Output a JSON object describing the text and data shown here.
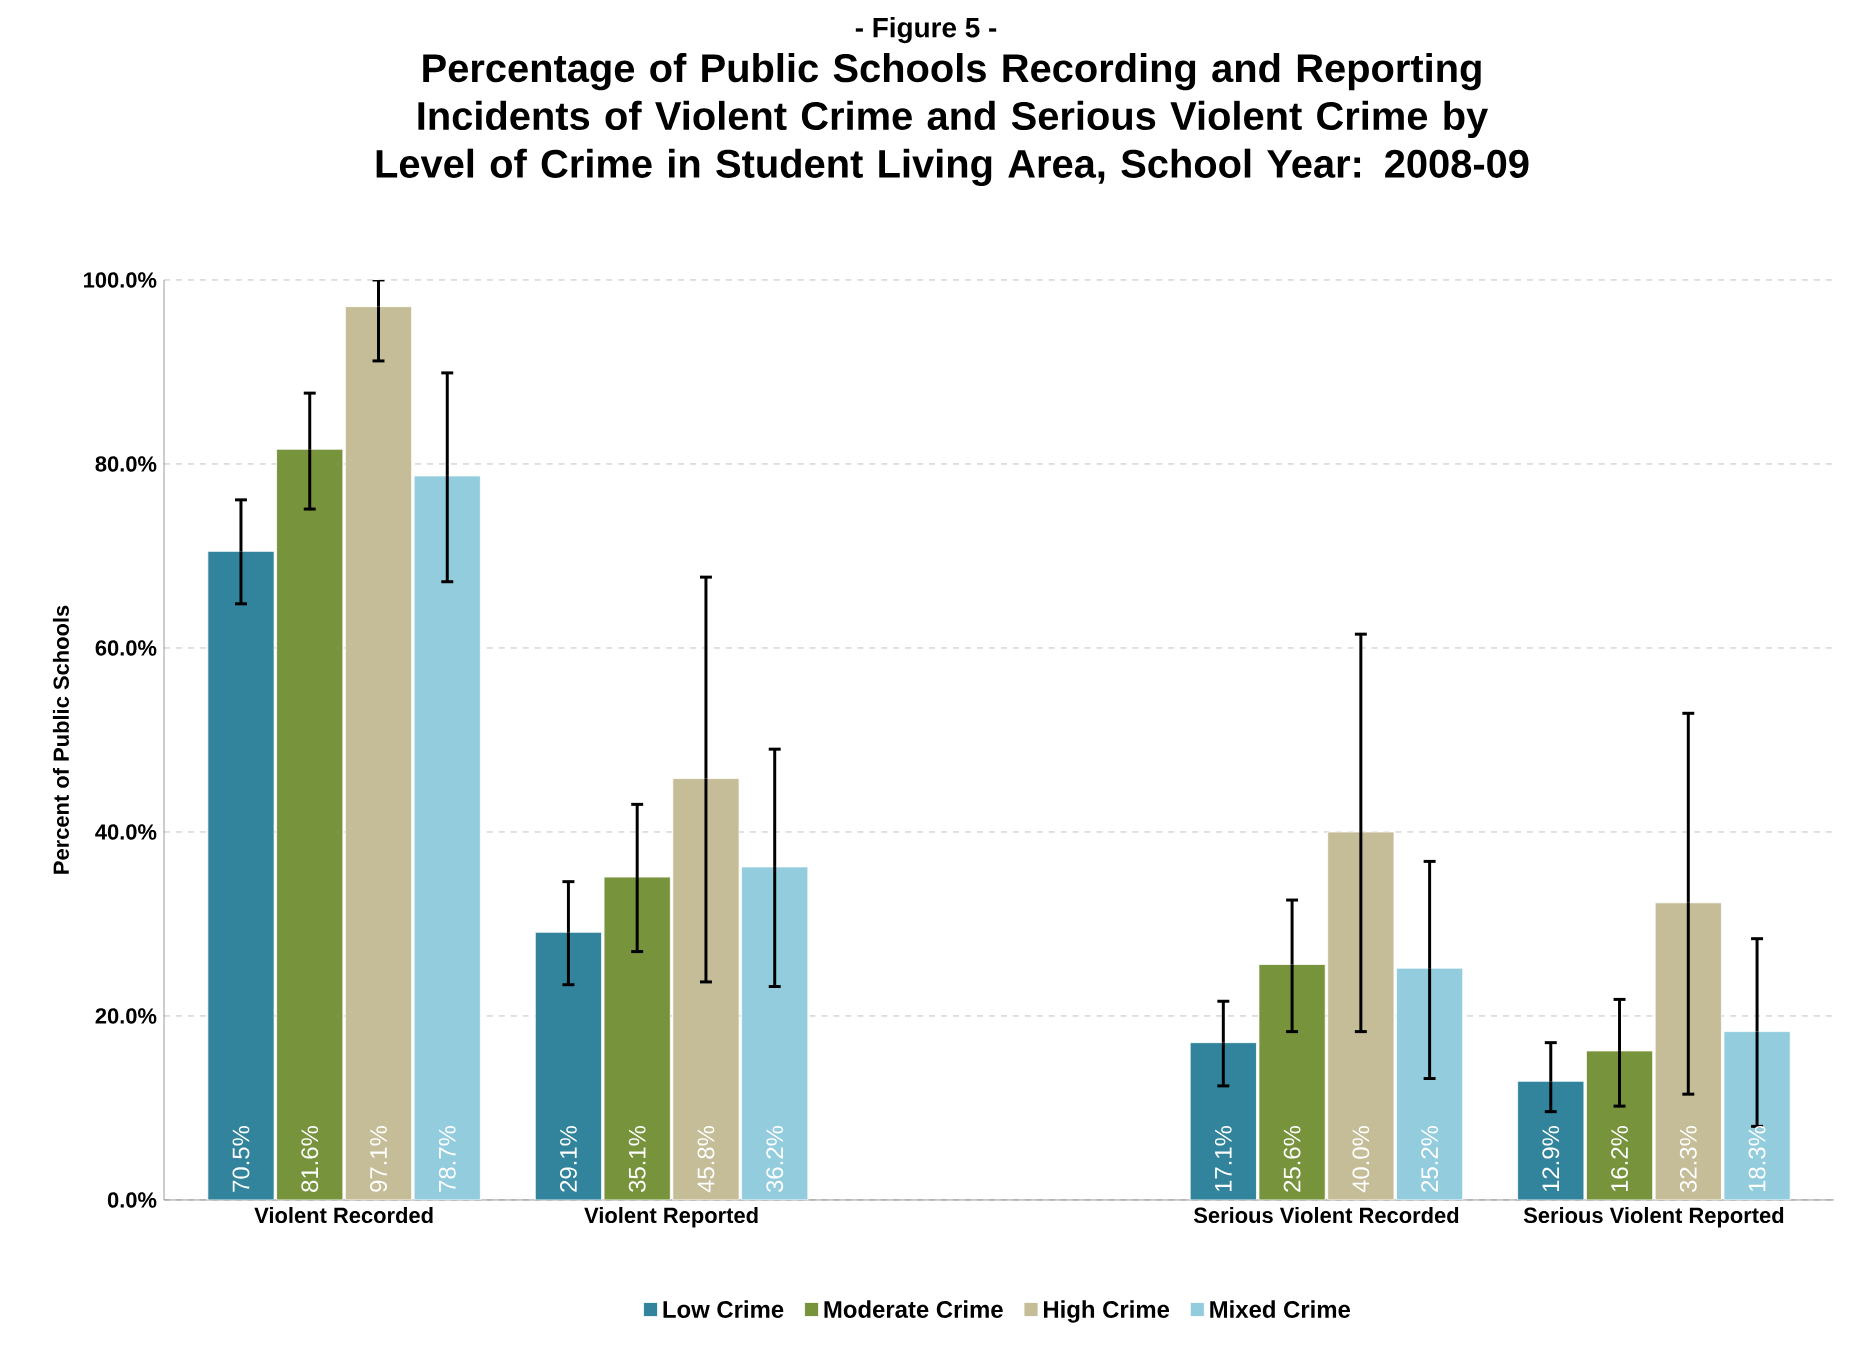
{
  "chart_data": {
    "type": "bar",
    "subtitle": "- Figure 5 -",
    "title": "Percentage of Public Schools Recording and Reporting Incidents of Violent Crime and Serious Violent Crime by Level of Crime in Student Living Area, School Year: 2008-09",
    "ylabel": "Percent of Public Schools",
    "categories": [
      "Violent Recorded",
      "Violent Reported",
      null,
      "Serious Violent Recorded",
      "Serious Violent Reported"
    ],
    "series": [
      {
        "name": "Low Crime",
        "color": "#31849b",
        "values": [
          70.5,
          29.1,
          null,
          17.1,
          12.9
        ],
        "value_labels": [
          "70.5%",
          "29.1%",
          null,
          "17.1%",
          "12.9%"
        ],
        "errors": [
          [
            64.8,
            76.1
          ],
          [
            23.4,
            34.6
          ],
          null,
          [
            12.4,
            21.6
          ],
          [
            9.6,
            17.1
          ]
        ]
      },
      {
        "name": "Moderate Crime",
        "color": "#77933c",
        "values": [
          81.6,
          35.1,
          null,
          25.6,
          16.2
        ],
        "value_labels": [
          "81.6%",
          "35.1%",
          null,
          "25.6%",
          "16.2%"
        ],
        "errors": [
          [
            75.1,
            87.7
          ],
          [
            27.0,
            43.0
          ],
          null,
          [
            18.3,
            32.6
          ],
          [
            10.2,
            21.8
          ]
        ]
      },
      {
        "name": "High Crime",
        "color": "#c4bd97",
        "values": [
          97.1,
          45.8,
          null,
          40.0,
          32.3
        ],
        "value_labels": [
          "97.1%",
          "45.8%",
          null,
          "40.0%",
          "32.3%"
        ],
        "errors": [
          [
            91.2,
            100
          ],
          [
            23.7,
            67.7
          ],
          null,
          [
            18.3,
            61.5
          ],
          [
            11.5,
            52.9
          ]
        ]
      },
      {
        "name": "Mixed Crime",
        "color": "#93cddd",
        "values": [
          78.7,
          36.2,
          null,
          25.2,
          18.3
        ],
        "value_labels": [
          "78.7%",
          "36.2%",
          null,
          "25.2%",
          "18.3%"
        ],
        "errors": [
          [
            67.2,
            89.9
          ],
          [
            23.2,
            49.0
          ],
          null,
          [
            13.2,
            36.8
          ],
          [
            8.0,
            28.4
          ]
        ]
      }
    ],
    "ylim": [
      0,
      100
    ],
    "yticks": [
      {
        "value": 0,
        "label": "0.0%"
      },
      {
        "value": 20,
        "label": "20.0%"
      },
      {
        "value": 40,
        "label": "40.0%"
      },
      {
        "value": 60,
        "label": "60.0%"
      },
      {
        "value": 80,
        "label": "80.0%"
      },
      {
        "value": 100,
        "label": "100.0%"
      }
    ],
    "grid": "y",
    "legend": "bottom"
  }
}
